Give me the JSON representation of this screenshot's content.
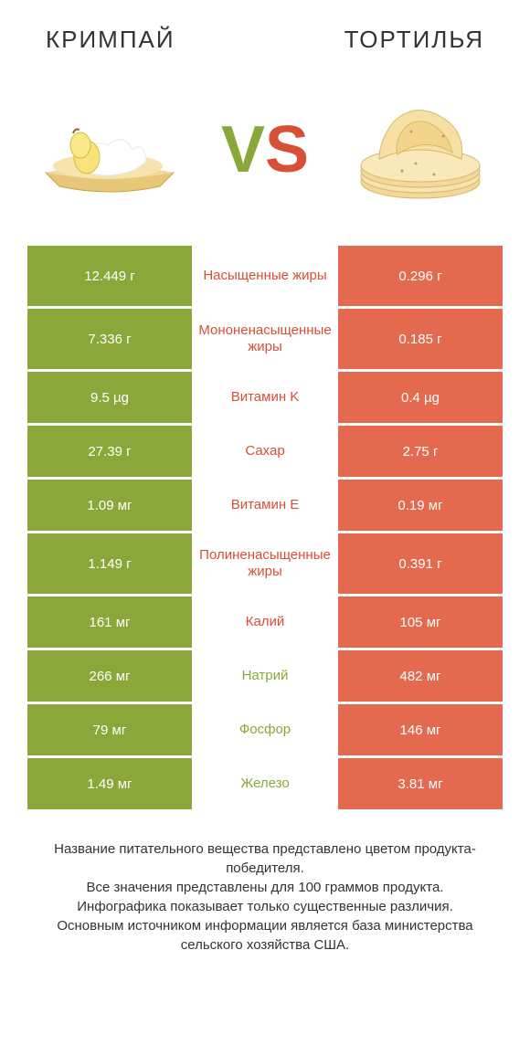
{
  "colors": {
    "green": "#8aa83a",
    "orange": "#e36a4f",
    "green_text": "#8aa83a",
    "orange_text": "#d84f38",
    "row_gap": "#ffffff"
  },
  "header": {
    "left_title": "Кримпай",
    "right_title": "Тортилья"
  },
  "vs": {
    "v": "V",
    "s": "S"
  },
  "rows": [
    {
      "left": "12.449 г",
      "label": "Насыщенные жиры",
      "right": "0.296 г",
      "winner": "left",
      "tall": true
    },
    {
      "left": "7.336 г",
      "label": "Мононенасыщенные жиры",
      "right": "0.185 г",
      "winner": "left",
      "tall": true
    },
    {
      "left": "9.5 µg",
      "label": "Витамин K",
      "right": "0.4 µg",
      "winner": "left",
      "tall": false
    },
    {
      "left": "27.39 г",
      "label": "Сахар",
      "right": "2.75 г",
      "winner": "left",
      "tall": false
    },
    {
      "left": "1.09 мг",
      "label": "Витамин E",
      "right": "0.19 мг",
      "winner": "left",
      "tall": false
    },
    {
      "left": "1.149 г",
      "label": "Полиненасыщенные жиры",
      "right": "0.391 г",
      "winner": "left",
      "tall": true
    },
    {
      "left": "161 мг",
      "label": "Калий",
      "right": "105 мг",
      "winner": "left",
      "tall": false
    },
    {
      "left": "266 мг",
      "label": "Натрий",
      "right": "482 мг",
      "winner": "right",
      "tall": false
    },
    {
      "left": "79 мг",
      "label": "Фосфор",
      "right": "146 мг",
      "winner": "right",
      "tall": false
    },
    {
      "left": "1.49 мг",
      "label": "Железо",
      "right": "3.81 мг",
      "winner": "right",
      "tall": false
    }
  ],
  "footer": {
    "line1": "Название питательного вещества представлено цветом продукта-победителя.",
    "line2": "Все значения представлены для 100 граммов продукта.",
    "line3": "Инфографика показывает только существенные различия.",
    "line4": "Основным источником информации является база министерства сельского хозяйства США."
  }
}
